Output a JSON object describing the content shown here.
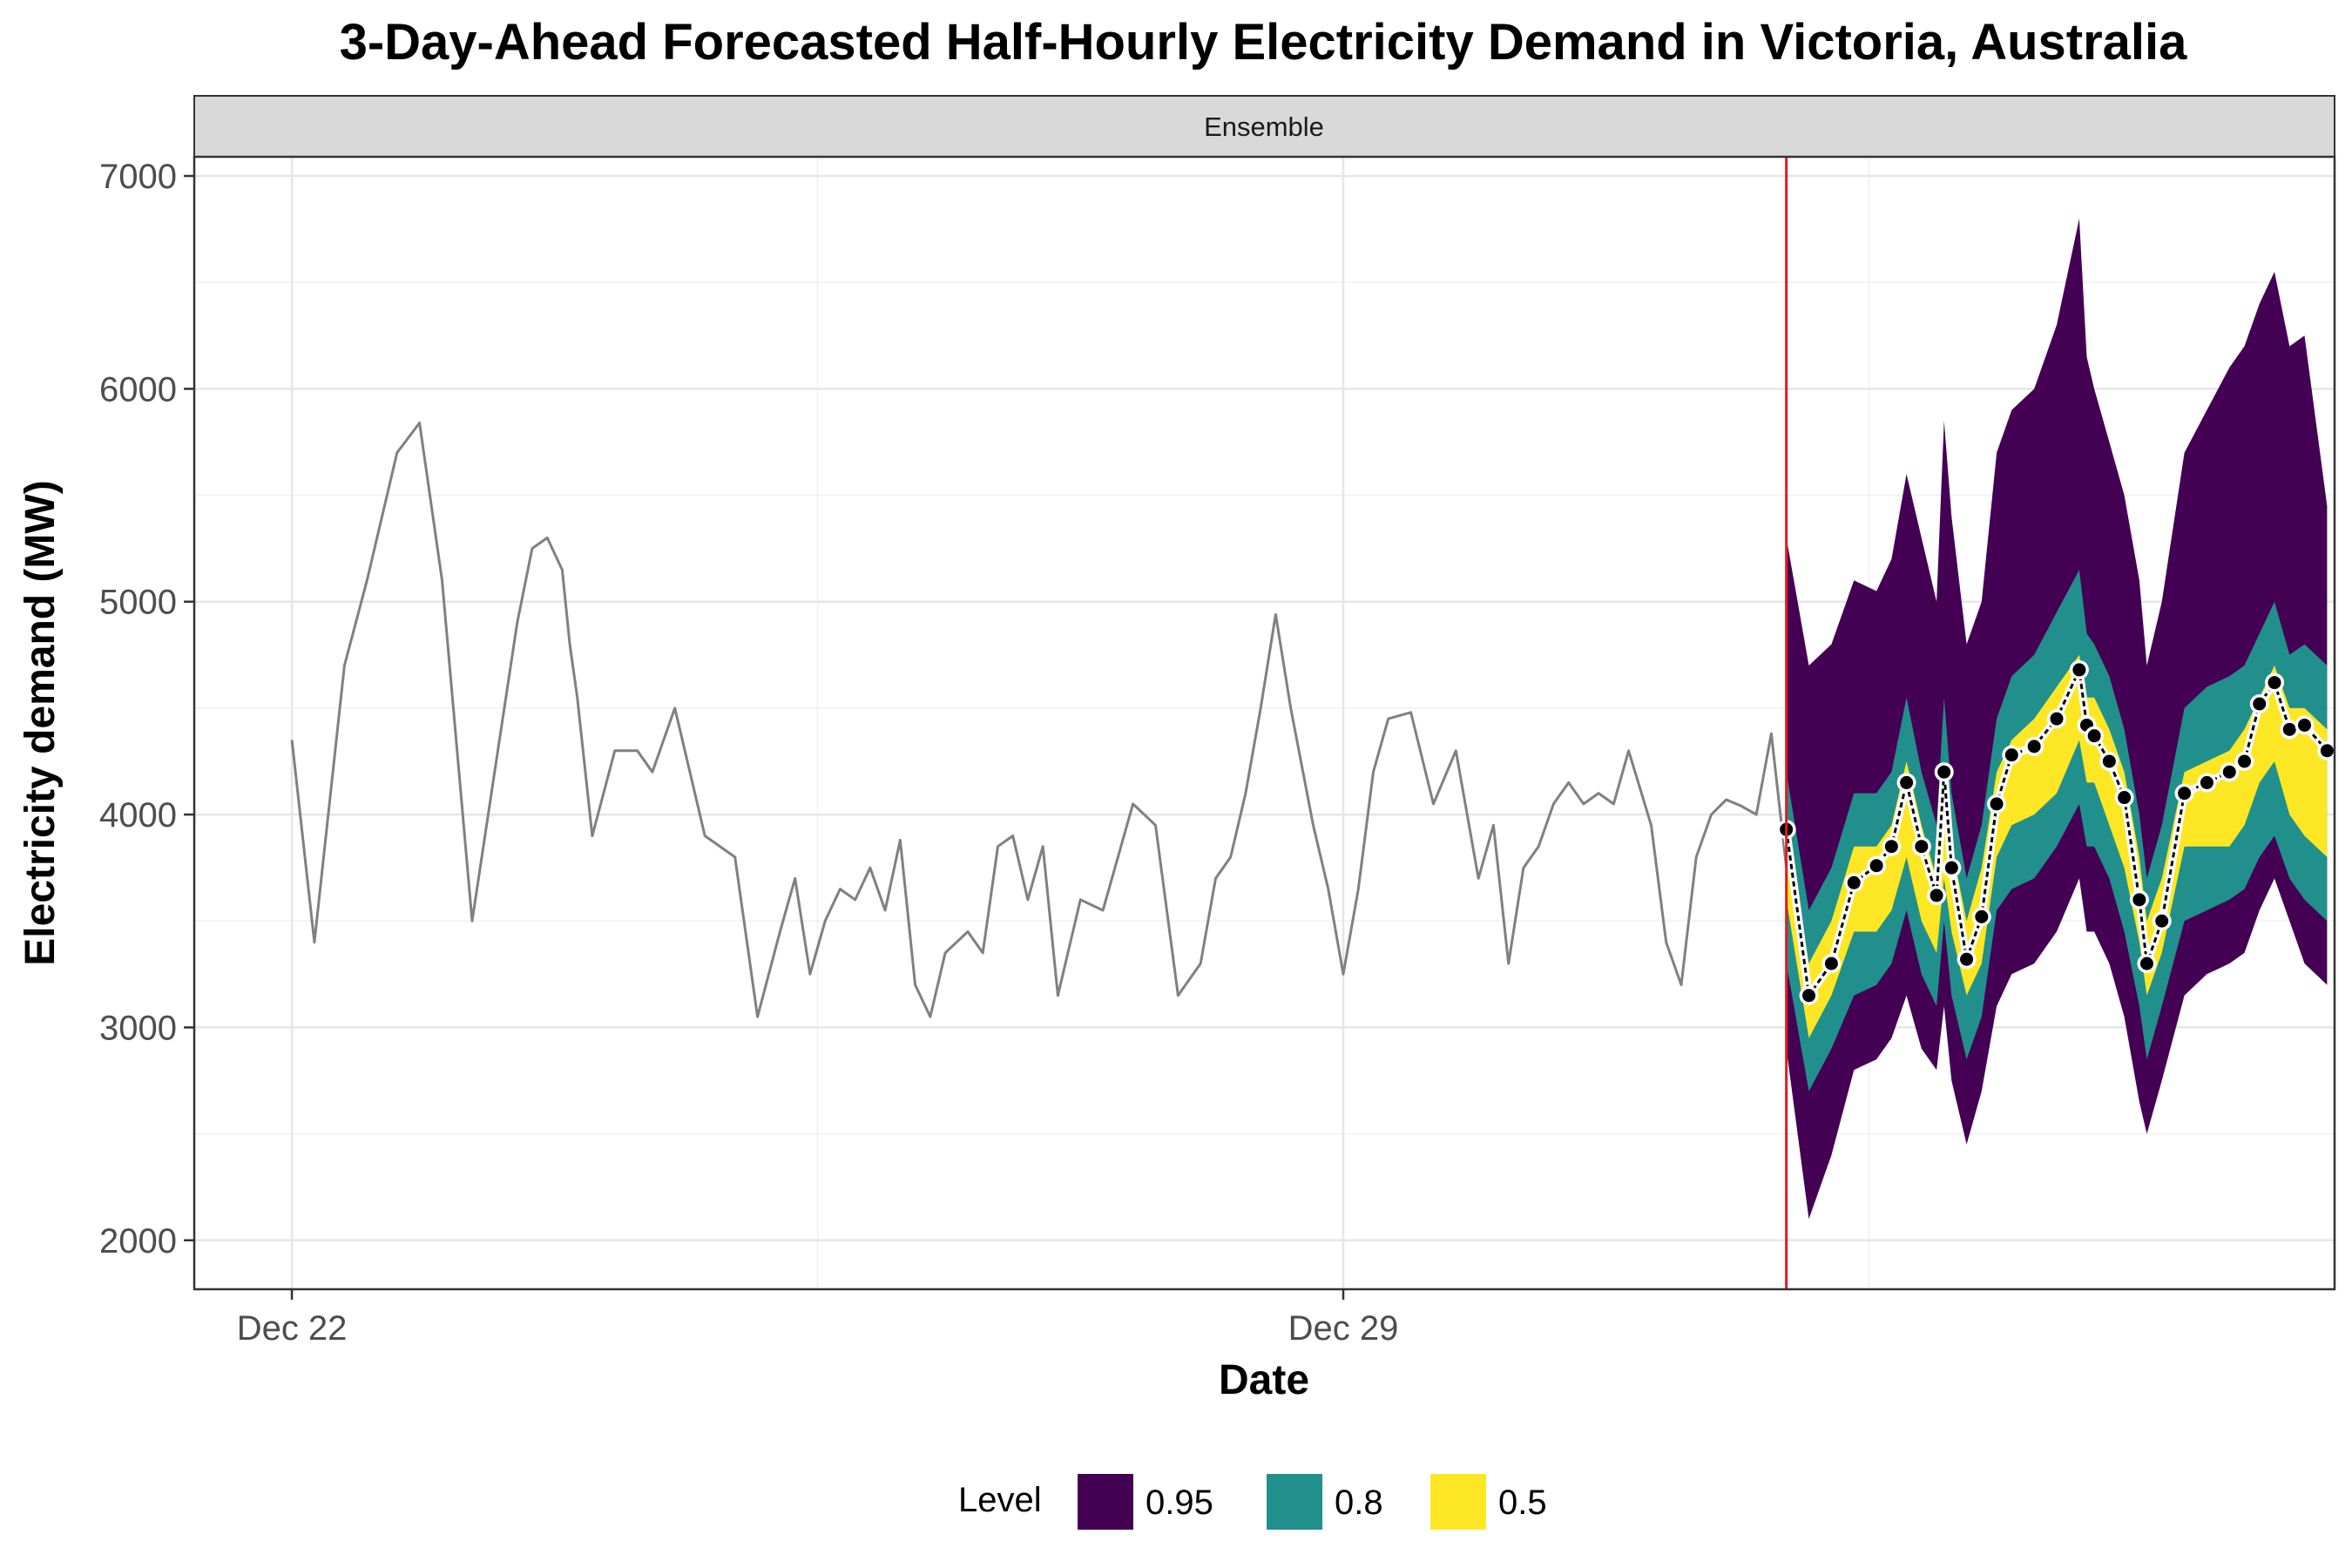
{
  "chart_data": {
    "type": "line",
    "title": "3-Day-Ahead Forecasted Half-Hourly Electricity Demand in Victoria, Australia",
    "xlabel": "Date",
    "ylabel": "Electricity demand (MW)",
    "facet_label": "Ensemble",
    "x_ticks": [
      {
        "day": 0,
        "label": "Dec 22"
      },
      {
        "day": 7,
        "label": "Dec 29"
      }
    ],
    "x_minor_grid_days": [
      3.5,
      10.5
    ],
    "xlim_days": [
      -0.65,
      13.6
    ],
    "ylim": [
      1770,
      7090
    ],
    "y_ticks": [
      2000,
      3000,
      4000,
      5000,
      6000,
      7000
    ],
    "y_minor_grid": [
      2500,
      3500,
      4500,
      5500,
      6500
    ],
    "forecast_origin_day": 9.95,
    "legend": {
      "title": "Level",
      "position": "bottom",
      "items": [
        {
          "label": "0.95",
          "color": "#440154"
        },
        {
          "label": "0.8",
          "color": "#21908C"
        },
        {
          "label": "0.5",
          "color": "#FDE725"
        }
      ]
    },
    "colors": {
      "history_line": "#808080",
      "forecast_origin": "#E41A1C",
      "point_mean": "#000000"
    },
    "history": {
      "x_days": [
        0,
        0.15,
        0.35,
        0.5,
        0.7,
        0.85,
        1.0,
        1.2,
        1.35,
        1.5,
        1.6,
        1.7,
        1.8,
        1.85,
        1.9,
        2.0,
        2.15,
        2.3,
        2.4,
        2.55,
        2.75,
        2.95,
        3.1,
        3.25,
        3.35,
        3.45,
        3.55,
        3.65,
        3.75,
        3.85,
        3.95,
        4.05,
        4.15,
        4.25,
        4.35,
        4.5,
        4.6,
        4.7,
        4.8,
        4.9,
        5.0,
        5.1,
        5.25,
        5.4,
        5.5,
        5.6,
        5.75,
        5.9,
        6.05,
        6.15,
        6.25,
        6.35,
        6.45,
        6.55,
        6.65,
        6.8,
        6.9,
        7.0,
        7.1,
        7.2,
        7.3,
        7.45,
        7.6,
        7.75,
        7.9,
        8.0,
        8.1,
        8.2,
        8.3,
        8.4,
        8.5,
        8.6,
        8.7,
        8.8,
        8.9,
        9.05,
        9.15,
        9.25,
        9.35,
        9.45,
        9.55,
        9.65,
        9.75,
        9.85,
        9.95
      ],
      "y": [
        4350,
        3400,
        4700,
        5100,
        5700,
        5840,
        5100,
        3500,
        4200,
        4900,
        5250,
        5300,
        5150,
        4800,
        4550,
        3900,
        4300,
        4300,
        4200,
        4500,
        3900,
        3800,
        3050,
        3450,
        3700,
        3250,
        3500,
        3650,
        3600,
        3750,
        3550,
        3880,
        3200,
        3050,
        3350,
        3450,
        3350,
        3850,
        3900,
        3600,
        3850,
        3150,
        3600,
        3550,
        3800,
        4050,
        3950,
        3150,
        3300,
        3700,
        3800,
        4100,
        4500,
        4940,
        4500,
        3950,
        3650,
        3250,
        3650,
        4200,
        4450,
        4480,
        4050,
        4300,
        3700,
        3950,
        3300,
        3750,
        3850,
        4050,
        4150,
        4050,
        4100,
        4050,
        4300,
        3950,
        3400,
        3200,
        3800,
        4000,
        4070,
        4040,
        4000,
        4380,
        3750
      ]
    },
    "forecast": {
      "x_days": [
        9.95,
        10.1,
        10.25,
        10.4,
        10.55,
        10.65,
        10.75,
        10.85,
        10.95,
        11.0,
        11.05,
        11.15,
        11.25,
        11.35,
        11.45,
        11.6,
        11.75,
        11.9,
        11.95,
        12.0,
        12.1,
        12.2,
        12.3,
        12.35,
        12.45,
        12.6,
        12.75,
        12.9,
        13.0,
        13.1,
        13.2,
        13.3,
        13.4,
        13.55
      ],
      "mean": [
        3930,
        3150,
        3300,
        3680,
        3760,
        3850,
        4150,
        3850,
        3620,
        4200,
        3750,
        3320,
        3520,
        4050,
        4280,
        4320,
        4450,
        4680,
        4420,
        4370,
        4250,
        4080,
        3600,
        3300,
        3500,
        4100,
        4150,
        4200,
        4250,
        4520,
        4620,
        4400,
        4420,
        4300
      ],
      "lo50": [
        3600,
        2950,
        3150,
        3450,
        3450,
        3550,
        3800,
        3500,
        3350,
        3700,
        3450,
        3150,
        3300,
        3800,
        3950,
        4000,
        4100,
        4350,
        4150,
        4150,
        3950,
        3750,
        3400,
        3150,
        3350,
        3850,
        3850,
        3850,
        3950,
        4150,
        4250,
        4000,
        3900,
        3800
      ],
      "hi50": [
        3950,
        3300,
        3500,
        3850,
        3850,
        3950,
        4250,
        3950,
        3700,
        4250,
        3850,
        3500,
        3750,
        4200,
        4350,
        4450,
        4600,
        4750,
        4550,
        4550,
        4400,
        4200,
        3800,
        3500,
        3700,
        4200,
        4250,
        4300,
        4400,
        4550,
        4700,
        4500,
        4500,
        4400
      ],
      "lo80": [
        3300,
        2700,
        2900,
        3150,
        3200,
        3300,
        3550,
        3250,
        3100,
        3500,
        3150,
        2850,
        3050,
        3550,
        3650,
        3700,
        3850,
        4050,
        3850,
        3850,
        3700,
        3450,
        3100,
        2850,
        3100,
        3500,
        3550,
        3600,
        3650,
        3800,
        3900,
        3700,
        3600,
        3500
      ],
      "hi80": [
        4200,
        3550,
        3750,
        4100,
        4100,
        4200,
        4550,
        4200,
        3950,
        4550,
        4100,
        3700,
        3950,
        4450,
        4650,
        4750,
        4950,
        5150,
        4850,
        4800,
        4650,
        4400,
        4000,
        3700,
        3950,
        4500,
        4600,
        4650,
        4700,
        4850,
        5000,
        4750,
        4800,
        4700
      ],
      "lo95": [
        2900,
        2100,
        2400,
        2800,
        2850,
        2950,
        3150,
        2900,
        2800,
        3100,
        2750,
        2450,
        2700,
        3100,
        3250,
        3300,
        3450,
        3700,
        3450,
        3450,
        3300,
        3050,
        2650,
        2500,
        2750,
        3150,
        3250,
        3300,
        3350,
        3550,
        3700,
        3500,
        3300,
        3200
      ],
      "hi95": [
        5300,
        4700,
        4800,
        5100,
        5050,
        5200,
        5600,
        5300,
        5000,
        5850,
        5400,
        4800,
        5000,
        5700,
        5900,
        6000,
        6300,
        6800,
        6150,
        6000,
        5750,
        5500,
        5100,
        4700,
        5000,
        5700,
        5900,
        6100,
        6200,
        6400,
        6550,
        6200,
        6250,
        5450
      ]
    }
  }
}
